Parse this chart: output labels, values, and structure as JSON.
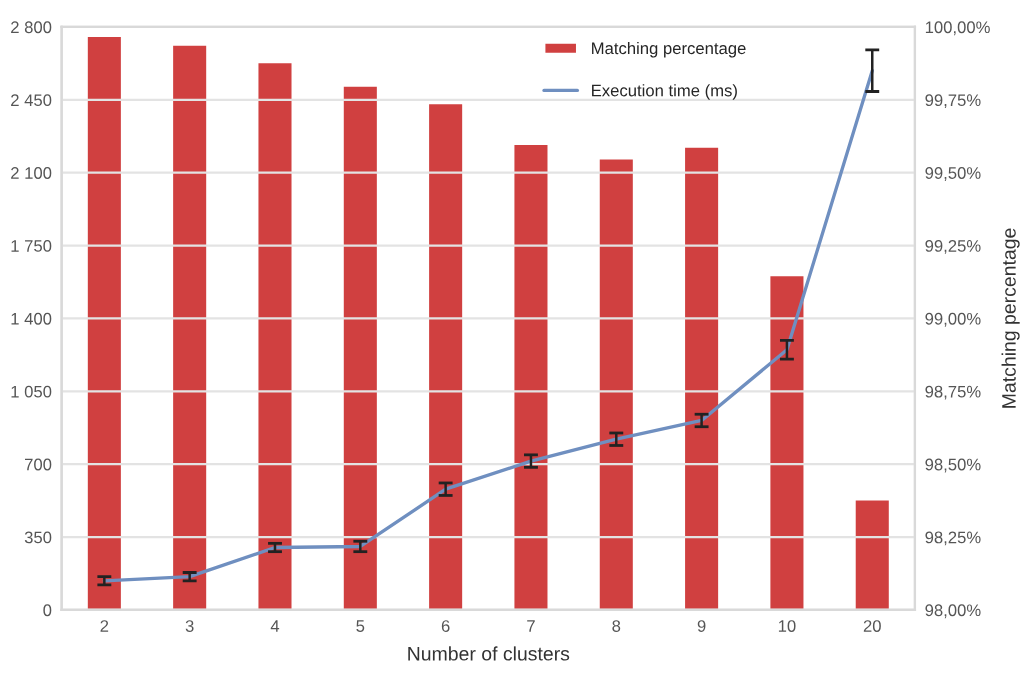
{
  "chart_data": {
    "type": "bar",
    "xlabel": "Number of clusters",
    "y2label": "Matching percentage",
    "categories": [
      "2",
      "3",
      "4",
      "5",
      "6",
      "7",
      "8",
      "9",
      "10",
      "20"
    ],
    "series": [
      {
        "name": "Matching percentage",
        "axis": "y2",
        "color": "#d04040",
        "values": [
          99.97,
          99.94,
          99.88,
          99.8,
          99.74,
          99.6,
          99.55,
          99.59,
          99.15,
          98.38
        ]
      },
      {
        "name": "Execution time (ms)",
        "type": "line",
        "axis": "y",
        "color": "#6f8fc0",
        "values": [
          140,
          160,
          300,
          305,
          580,
          715,
          820,
          910,
          1250,
          2590
        ],
        "errors": [
          20,
          20,
          20,
          25,
          30,
          30,
          30,
          30,
          45,
          100
        ]
      }
    ],
    "ylim": [
      0,
      2800
    ],
    "yticks": [
      0,
      350,
      700,
      {
        "value": 1050,
        "label": "1 050"
      },
      {
        "value": 1400,
        "label": "1 400"
      },
      {
        "value": 1750,
        "label": "1 750"
      },
      {
        "value": 2100,
        "label": "2 100"
      },
      {
        "value": 2450,
        "label": "2 450"
      },
      {
        "value": 2800,
        "label": "2 800"
      }
    ],
    "y2lim": [
      98,
      100
    ],
    "y2ticks": [
      {
        "value": 98,
        "label": "98,00%"
      },
      {
        "value": 98.25,
        "label": "98,25%"
      },
      {
        "value": 98.5,
        "label": "98,50%"
      },
      {
        "value": 98.75,
        "label": "98,75%"
      },
      {
        "value": 99,
        "label": "99,00%"
      },
      {
        "value": 99.25,
        "label": "99,25%"
      },
      {
        "value": 99.5,
        "label": "99,50%"
      },
      {
        "value": 99.75,
        "label": "99,75%"
      },
      {
        "value": 100,
        "label": "100,00%"
      }
    ],
    "grid": "y",
    "legend": "top right"
  }
}
